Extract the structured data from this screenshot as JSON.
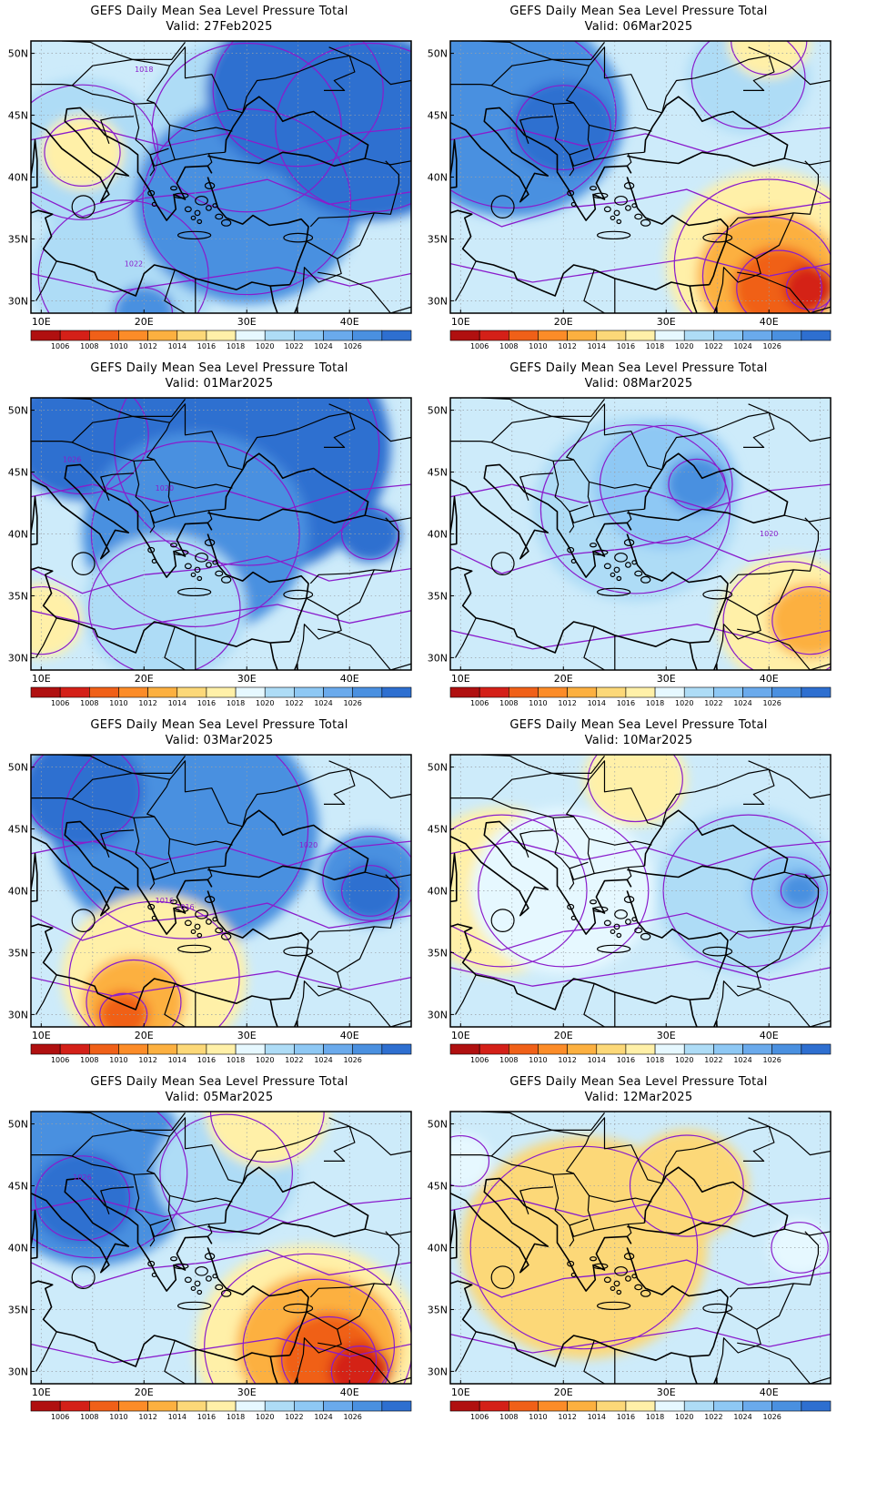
{
  "panels": [
    {
      "title": "GEFS Daily Mean Sea Level Pressure Total",
      "valid": "Valid: 27Feb2025",
      "features": [
        {
          "x": 14,
          "y": 42,
          "r": 8,
          "c": "#aedcf6"
        },
        {
          "x": 30,
          "y": 44,
          "r": 10,
          "c": "#aedcf6"
        },
        {
          "x": 14,
          "y": 42,
          "r": 4,
          "c": "#fff0a8"
        },
        {
          "x": 18,
          "y": 32,
          "r": 9,
          "c": "#aedcf6"
        },
        {
          "x": 30,
          "y": 38,
          "r": 11,
          "c": "#4a90e0"
        },
        {
          "x": 35,
          "y": 47,
          "r": 9,
          "c": "#2e6fd0"
        },
        {
          "x": 42,
          "y": 44,
          "r": 10,
          "c": "#2e6fd0"
        },
        {
          "x": 20,
          "y": 29,
          "r": 3,
          "c": "#4a90e0"
        }
      ],
      "isobar_labels": [
        {
          "text": "1018",
          "x": 20,
          "y": 48.5
        },
        {
          "text": "1022",
          "x": 19,
          "y": 32.8
        }
      ]
    },
    {
      "title": "GEFS Daily Mean Sea Level Pressure Total",
      "valid": "Valid: 06Mar2025",
      "features": [
        {
          "x": 15,
          "y": 45,
          "r": 11,
          "c": "#4a90e0"
        },
        {
          "x": 20,
          "y": 44,
          "r": 5,
          "c": "#2e6fd0"
        },
        {
          "x": 38,
          "y": 48,
          "r": 6,
          "c": "#aedcf6"
        },
        {
          "x": 40,
          "y": 51,
          "r": 4,
          "c": "#fff0a8"
        },
        {
          "x": 40,
          "y": 33,
          "r": 10,
          "c": "#fff0a8"
        },
        {
          "x": 40,
          "y": 32,
          "r": 7,
          "c": "#fcb040"
        },
        {
          "x": 41,
          "y": 31,
          "r": 4.5,
          "c": "#f06018"
        },
        {
          "x": 44,
          "y": 31,
          "r": 2.5,
          "c": "#d42018"
        }
      ],
      "isobar_labels": []
    },
    {
      "title": "GEFS Daily Mean Sea Level Pressure Total",
      "valid": "Valid: 01Mar2025",
      "features": [
        {
          "x": 30,
          "y": 47,
          "r": 14,
          "c": "#2e6fd0"
        },
        {
          "x": 14,
          "y": 48,
          "r": 7,
          "c": "#2e6fd0"
        },
        {
          "x": 25,
          "y": 40,
          "r": 11,
          "c": "#4a90e0"
        },
        {
          "x": 22,
          "y": 34,
          "r": 8,
          "c": "#aedcf6"
        },
        {
          "x": 10,
          "y": 33,
          "r": 4,
          "c": "#fff0a8"
        },
        {
          "x": 42,
          "y": 40,
          "r": 3,
          "c": "#2e6fd0"
        }
      ],
      "isobar_labels": [
        {
          "text": "1026",
          "x": 13,
          "y": 45.8
        },
        {
          "text": "1020",
          "x": 22,
          "y": 43.5
        }
      ]
    },
    {
      "title": "GEFS Daily Mean Sea Level Pressure Total",
      "valid": "Valid: 08Mar2025",
      "features": [
        {
          "x": 27,
          "y": 42,
          "r": 10,
          "c": "#aedcf6"
        },
        {
          "x": 30,
          "y": 44,
          "r": 7,
          "c": "#8ec8f4"
        },
        {
          "x": 33,
          "y": 44,
          "r": 3,
          "c": "#4a90e0"
        },
        {
          "x": 42,
          "y": 33,
          "r": 7,
          "c": "#fff0a8"
        },
        {
          "x": 44,
          "y": 33,
          "r": 4,
          "c": "#fcb040"
        }
      ],
      "isobar_labels": [
        {
          "text": "1020",
          "x": 40,
          "y": 39.8
        }
      ]
    },
    {
      "title": "GEFS Daily Mean Sea Level Pressure Total",
      "valid": "Valid: 03Mar2025",
      "features": [
        {
          "x": 24,
          "y": 45,
          "r": 13,
          "c": "#4a90e0"
        },
        {
          "x": 14,
          "y": 48,
          "r": 6,
          "c": "#2e6fd0"
        },
        {
          "x": 42,
          "y": 41,
          "r": 5,
          "c": "#4a90e0"
        },
        {
          "x": 42,
          "y": 40,
          "r": 3,
          "c": "#2e6fd0"
        },
        {
          "x": 21,
          "y": 33,
          "r": 9,
          "c": "#fff0a8"
        },
        {
          "x": 19,
          "y": 31,
          "r": 5,
          "c": "#fcb040"
        },
        {
          "x": 18,
          "y": 30,
          "r": 2.5,
          "c": "#f06018"
        }
      ],
      "isobar_labels": [
        {
          "text": "1020",
          "x": 36,
          "y": 43.5
        },
        {
          "text": "1016",
          "x": 24,
          "y": 38.5
        },
        {
          "text": "1016",
          "x": 22,
          "y": 39
        }
      ]
    },
    {
      "title": "GEFS Daily Mean Sea Level Pressure Total",
      "valid": "Valid: 10Mar2025",
      "features": [
        {
          "x": 14,
          "y": 40,
          "r": 9,
          "c": "#fff0a8"
        },
        {
          "x": 20,
          "y": 40,
          "r": 9,
          "c": "#e6f8ff"
        },
        {
          "x": 38,
          "y": 40,
          "r": 9,
          "c": "#aedcf6"
        },
        {
          "x": 42,
          "y": 40,
          "r": 4,
          "c": "#8ec8f4"
        },
        {
          "x": 43,
          "y": 40,
          "r": 2,
          "c": "#4a90e0"
        },
        {
          "x": 27,
          "y": 49,
          "r": 5,
          "c": "#fff0a8"
        }
      ],
      "isobar_labels": []
    },
    {
      "title": "GEFS Daily Mean Sea Level Pressure Total",
      "valid": "Valid: 05Mar2025",
      "features": [
        {
          "x": 15,
          "y": 46,
          "r": 10,
          "c": "#4a90e0"
        },
        {
          "x": 14,
          "y": 44,
          "r": 5,
          "c": "#2e6fd0"
        },
        {
          "x": 28,
          "y": 46,
          "r": 7,
          "c": "#aedcf6"
        },
        {
          "x": 32,
          "y": 51,
          "r": 6,
          "c": "#fff0a8"
        },
        {
          "x": 36,
          "y": 32,
          "r": 11,
          "c": "#fff0a8"
        },
        {
          "x": 37,
          "y": 32,
          "r": 8,
          "c": "#fcb040"
        },
        {
          "x": 38,
          "y": 31,
          "r": 5,
          "c": "#f06018"
        },
        {
          "x": 41,
          "y": 30,
          "r": 3,
          "c": "#d42018"
        }
      ],
      "isobar_labels": [
        {
          "text": "1026",
          "x": 14,
          "y": 45.5
        }
      ]
    },
    {
      "title": "GEFS Daily Mean Sea Level Pressure Total",
      "valid": "Valid: 12Mar2025",
      "features": [
        {
          "x": 10,
          "y": 47,
          "r": 3,
          "c": "#e6f8ff"
        },
        {
          "x": 22,
          "y": 40,
          "r": 12,
          "c": "#fcd878"
        },
        {
          "x": 43,
          "y": 40,
          "r": 3,
          "c": "#e6f8ff"
        },
        {
          "x": 32,
          "y": 45,
          "r": 6,
          "c": "#fcd878"
        }
      ],
      "isobar_labels": []
    }
  ],
  "map_common": {
    "lon_ticks": [
      "10E",
      "20E",
      "30E",
      "40E"
    ],
    "lat_ticks": [
      "50N",
      "45N",
      "40N",
      "35N",
      "30N"
    ],
    "colorbar_values": [
      "1006",
      "1008",
      "1010",
      "1012",
      "1014",
      "1016",
      "1018",
      "1020",
      "1022",
      "1024",
      "1026"
    ],
    "colorbar_colors": [
      "#b01010",
      "#d42018",
      "#f06018",
      "#fc8c28",
      "#fcb040",
      "#fcd878",
      "#fff0a8",
      "#e6f8ff",
      "#aedcf6",
      "#8ec8f4",
      "#6aaaec",
      "#4a90e0",
      "#2e6fd0"
    ],
    "base_color": "#cdebfa",
    "isobar_color": "#8a1ccc"
  }
}
